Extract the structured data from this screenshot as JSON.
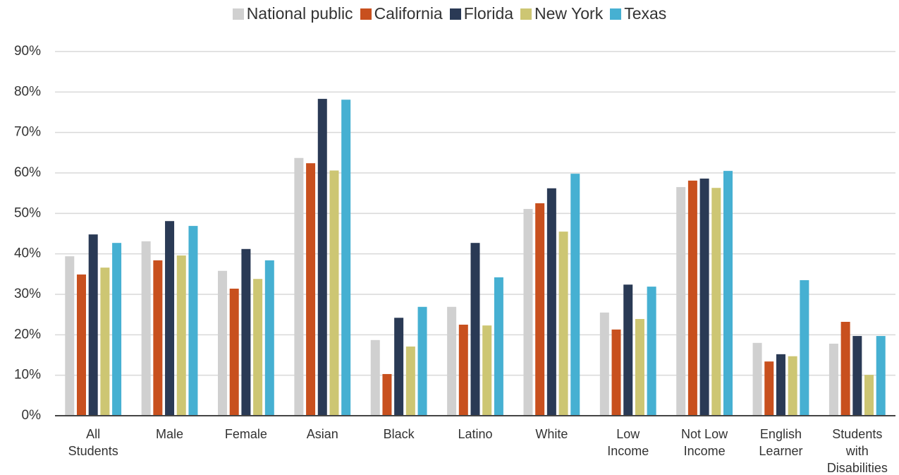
{
  "chart_data": {
    "type": "bar",
    "categories": [
      "All Students",
      "Male",
      "Female",
      "Asian",
      "Black",
      "Latino",
      "White",
      "Low Income",
      "Not Low Income",
      "English Learner",
      "Students with Disabilities"
    ],
    "series": [
      {
        "name": "National public",
        "color": "#d0d0d0",
        "values": [
          39.4,
          43.1,
          35.8,
          63.7,
          18.7,
          26.9,
          51.1,
          25.5,
          56.5,
          18.0,
          17.8
        ]
      },
      {
        "name": "California",
        "color": "#c8501e",
        "values": [
          34.9,
          38.4,
          31.4,
          62.4,
          10.3,
          22.5,
          52.5,
          21.3,
          58.1,
          13.4,
          23.2
        ]
      },
      {
        "name": "Florida",
        "color": "#2a3a55",
        "values": [
          44.8,
          48.1,
          41.2,
          78.3,
          24.2,
          42.7,
          56.2,
          32.4,
          58.6,
          15.2,
          19.7
        ]
      },
      {
        "name": "New York",
        "color": "#cdc673",
        "values": [
          36.6,
          39.6,
          33.8,
          60.6,
          17.1,
          22.3,
          45.5,
          23.9,
          56.3,
          14.7,
          10.1
        ]
      },
      {
        "name": "Texas",
        "color": "#46b0d2",
        "values": [
          42.7,
          46.9,
          38.4,
          78.1,
          26.9,
          34.2,
          59.8,
          31.9,
          60.5,
          33.5,
          19.7
        ]
      }
    ],
    "ylim": [
      0,
      90
    ],
    "yticks": [
      {
        "value": 0,
        "label": "0%"
      },
      {
        "value": 10,
        "label": "10%"
      },
      {
        "value": 20,
        "label": "20%"
      },
      {
        "value": 30,
        "label": "30%"
      },
      {
        "value": 40,
        "label": "40%"
      },
      {
        "value": 50,
        "label": "50%"
      },
      {
        "value": 60,
        "label": "60%"
      },
      {
        "value": 70,
        "label": "70%"
      },
      {
        "value": 80,
        "label": "80%"
      },
      {
        "value": 90,
        "label": "90%"
      }
    ],
    "grid": true,
    "legend": "top"
  }
}
